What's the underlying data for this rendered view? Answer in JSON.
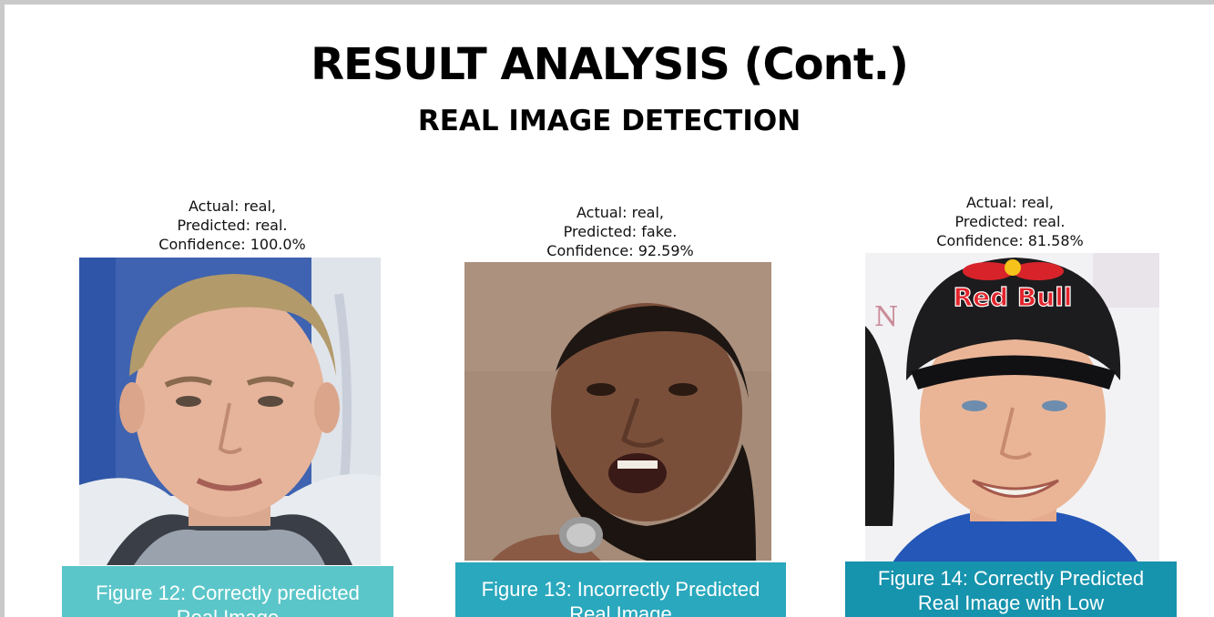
{
  "slide": {
    "title": "RESULT ANALYSIS (Cont.)",
    "subtitle": "REAL IMAGE DETECTION"
  },
  "figures": [
    {
      "actual": "Actual: real,",
      "predicted": "Predicted: real.",
      "confidence": "Confidence: 100.0%",
      "caption_line1": "Figure 12: Correctly predicted",
      "caption_line2": "Real Image",
      "caption_color": "#5bc6c9"
    },
    {
      "actual": "Actual: real,",
      "predicted": "Predicted: fake.",
      "confidence": "Confidence: 92.59%",
      "caption_line1": "Figure 13: Incorrectly Predicted",
      "caption_line2": "Real Image",
      "caption_color": "#2aa8bd"
    },
    {
      "actual": "Actual: real,",
      "predicted": "Predicted: real.",
      "confidence": "Confidence: 81.58%",
      "caption_line1": "Figure 14: Correctly Predicted",
      "caption_line2": "Real Image with Low",
      "caption_color": "#1693ad"
    }
  ],
  "photo_logo_text": "Red Bull"
}
